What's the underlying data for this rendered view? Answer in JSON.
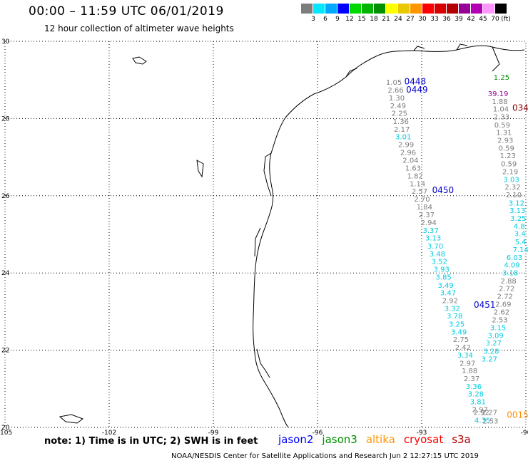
{
  "header": {
    "title": "00:00 – 11:59 UTC 06/01/2019",
    "subtitle": "12 hour collection of altimeter wave heights"
  },
  "colorbar": {
    "colors": [
      "#7d7d7d",
      "#00e8ff",
      "#00a8ff",
      "#0000ff",
      "#00d800",
      "#00b400",
      "#009000",
      "#ffff00",
      "#e8c800",
      "#ff9600",
      "#ff0000",
      "#d60000",
      "#b40000",
      "#960096",
      "#b400b4",
      "#ff96ff",
      "#000000"
    ],
    "labels": [
      "3",
      "6",
      "9",
      "12",
      "15",
      "18",
      "21",
      "24",
      "27",
      "30",
      "33",
      "36",
      "39",
      "42",
      "45",
      "70",
      "(ft)"
    ]
  },
  "map": {
    "lon_ticks": [
      "-105",
      "-102",
      "-99",
      "-96",
      "-93",
      "-90"
    ],
    "lat_ticks": [
      "30",
      "28",
      "26",
      "24",
      "22",
      "20"
    ],
    "lon_range": [
      -105,
      -90
    ],
    "lat_range": [
      20,
      30
    ],
    "grid": "dotted"
  },
  "passes": [
    {
      "label": "0448",
      "lon": -93.5,
      "lat": 28.88,
      "color": "#0000cc"
    },
    {
      "label": "0449",
      "lon": -93.45,
      "lat": 28.67,
      "color": "#0000cc"
    },
    {
      "label": "0450",
      "lon": -92.7,
      "lat": 26.07,
      "color": "#0000cc"
    },
    {
      "label": "0451",
      "lon": -91.5,
      "lat": 23.1,
      "color": "#0000cc"
    },
    {
      "label": "034",
      "lon": -90.35,
      "lat": 28.2,
      "color": "#8b0000"
    },
    {
      "label": "0015",
      "lon": -90.55,
      "lat": 20.25,
      "color": "#ff8c00"
    }
  ],
  "tracks": [
    {
      "satellite": "jason2",
      "points": [
        {
          "v": "1.05",
          "lon": -93.8,
          "lat": 28.87,
          "c": "#7d7d7d"
        },
        {
          "v": "2.66",
          "lon": -93.75,
          "lat": 28.67,
          "c": "#7d7d7d"
        },
        {
          "v": "1.30",
          "lon": -93.72,
          "lat": 28.47,
          "c": "#7d7d7d"
        },
        {
          "v": "2.49",
          "lon": -93.68,
          "lat": 28.27,
          "c": "#7d7d7d"
        },
        {
          "v": "2.25",
          "lon": -93.64,
          "lat": 28.07,
          "c": "#7d7d7d"
        },
        {
          "v": "1.36",
          "lon": -93.6,
          "lat": 27.86,
          "c": "#7d7d7d"
        },
        {
          "v": "2.17",
          "lon": -93.57,
          "lat": 27.66,
          "c": "#7d7d7d"
        },
        {
          "v": "3.01",
          "lon": -93.53,
          "lat": 27.46,
          "c": "#00cbe0"
        },
        {
          "v": "2.99",
          "lon": -93.45,
          "lat": 27.26,
          "c": "#7d7d7d"
        },
        {
          "v": "2.96",
          "lon": -93.39,
          "lat": 27.06,
          "c": "#7d7d7d"
        },
        {
          "v": "2.04",
          "lon": -93.32,
          "lat": 26.85,
          "c": "#7d7d7d"
        },
        {
          "v": "1.63",
          "lon": -93.25,
          "lat": 26.65,
          "c": "#7d7d7d"
        },
        {
          "v": "1.82",
          "lon": -93.19,
          "lat": 26.45,
          "c": "#7d7d7d"
        },
        {
          "v": "1.14",
          "lon": -93.12,
          "lat": 26.25,
          "c": "#7d7d7d"
        },
        {
          "v": "2.57",
          "lon": -93.06,
          "lat": 26.05,
          "c": "#7d7d7d"
        },
        {
          "v": "2.70",
          "lon": -92.99,
          "lat": 25.85,
          "c": "#7d7d7d"
        },
        {
          "v": "1.84",
          "lon": -92.92,
          "lat": 25.65,
          "c": "#7d7d7d"
        },
        {
          "v": "2.37",
          "lon": -92.86,
          "lat": 25.44,
          "c": "#7d7d7d"
        },
        {
          "v": "2.94",
          "lon": -92.8,
          "lat": 25.24,
          "c": "#7d7d7d"
        },
        {
          "v": "3.37",
          "lon": -92.74,
          "lat": 25.04,
          "c": "#00cbe0"
        },
        {
          "v": "3.13",
          "lon": -92.67,
          "lat": 24.84,
          "c": "#00cbe0"
        },
        {
          "v": "3.70",
          "lon": -92.61,
          "lat": 24.63,
          "c": "#00cbe0"
        },
        {
          "v": "3.48",
          "lon": -92.55,
          "lat": 24.43,
          "c": "#00cbe0"
        },
        {
          "v": "3.52",
          "lon": -92.49,
          "lat": 24.23,
          "c": "#00cbe0"
        },
        {
          "v": "3.93",
          "lon": -92.43,
          "lat": 24.03,
          "c": "#00cbe0"
        },
        {
          "v": "3.85",
          "lon": -92.37,
          "lat": 23.83,
          "c": "#00cbe0"
        },
        {
          "v": "3.49",
          "lon": -92.31,
          "lat": 23.62,
          "c": "#00cbe0"
        },
        {
          "v": "3.47",
          "lon": -92.24,
          "lat": 23.42,
          "c": "#00cbe0"
        },
        {
          "v": "2.92",
          "lon": -92.18,
          "lat": 23.22,
          "c": "#7d7d7d"
        },
        {
          "v": "3.32",
          "lon": -92.12,
          "lat": 23.02,
          "c": "#00cbe0"
        },
        {
          "v": "3.78",
          "lon": -92.05,
          "lat": 22.82,
          "c": "#00cbe0"
        },
        {
          "v": "3.25",
          "lon": -91.99,
          "lat": 22.61,
          "c": "#00cbe0"
        },
        {
          "v": "3.49",
          "lon": -91.93,
          "lat": 22.41,
          "c": "#00cbe0"
        },
        {
          "v": "2.75",
          "lon": -91.87,
          "lat": 22.21,
          "c": "#7d7d7d"
        },
        {
          "v": "2.42",
          "lon": -91.81,
          "lat": 22.01,
          "c": "#7d7d7d"
        },
        {
          "v": "3.34",
          "lon": -91.75,
          "lat": 21.81,
          "c": "#00cbe0"
        },
        {
          "v": "2.97",
          "lon": -91.68,
          "lat": 21.6,
          "c": "#7d7d7d"
        },
        {
          "v": "1.88",
          "lon": -91.62,
          "lat": 21.4,
          "c": "#7d7d7d"
        },
        {
          "v": "2.37",
          "lon": -91.56,
          "lat": 21.2,
          "c": "#7d7d7d"
        },
        {
          "v": "3.36",
          "lon": -91.5,
          "lat": 21.0,
          "c": "#00cbe0"
        },
        {
          "v": "3.28",
          "lon": -91.44,
          "lat": 20.8,
          "c": "#00cbe0"
        },
        {
          "v": "3.81",
          "lon": -91.38,
          "lat": 20.6,
          "c": "#00cbe0"
        },
        {
          "v": "2.97",
          "lon": -91.32,
          "lat": 20.4,
          "c": "#7d7d7d"
        },
        {
          "v": "2.92",
          "lon": -91.28,
          "lat": 20.32,
          "c": "#7d7d7d"
        },
        {
          "v": "4.35",
          "lon": -91.25,
          "lat": 20.12,
          "c": "#00cbe0"
        }
      ]
    },
    {
      "satellite": "jason3",
      "points": [
        {
          "v": "1.25",
          "lon": -90.7,
          "lat": 29.0,
          "c": "#009000"
        },
        {
          "v": "39.19",
          "lon": -90.8,
          "lat": 28.58,
          "c": "#960096"
        },
        {
          "v": "1.88",
          "lon": -90.75,
          "lat": 28.38,
          "c": "#7d7d7d"
        },
        {
          "v": "1.04",
          "lon": -90.72,
          "lat": 28.18,
          "c": "#7d7d7d"
        },
        {
          "v": "2.33",
          "lon": -90.7,
          "lat": 27.98,
          "c": "#7d7d7d"
        },
        {
          "v": "0.59",
          "lon": -90.68,
          "lat": 27.77,
          "c": "#7d7d7d"
        },
        {
          "v": "1.31",
          "lon": -90.63,
          "lat": 27.57,
          "c": "#7d7d7d"
        },
        {
          "v": "2.93",
          "lon": -90.59,
          "lat": 27.37,
          "c": "#7d7d7d"
        },
        {
          "v": "0.59",
          "lon": -90.56,
          "lat": 27.17,
          "c": "#7d7d7d"
        },
        {
          "v": "1.23",
          "lon": -90.52,
          "lat": 26.97,
          "c": "#7d7d7d"
        },
        {
          "v": "0.59",
          "lon": -90.49,
          "lat": 26.76,
          "c": "#7d7d7d"
        },
        {
          "v": "2.19",
          "lon": -90.45,
          "lat": 26.56,
          "c": "#7d7d7d"
        },
        {
          "v": "3.03",
          "lon": -90.42,
          "lat": 26.36,
          "c": "#00cbe0"
        },
        {
          "v": "2.32",
          "lon": -90.38,
          "lat": 26.16,
          "c": "#7d7d7d"
        },
        {
          "v": "2.10",
          "lon": -90.35,
          "lat": 25.96,
          "c": "#7d7d7d"
        },
        {
          "v": "3.12",
          "lon": -90.27,
          "lat": 25.75,
          "c": "#00cbe0"
        },
        {
          "v": "3.13",
          "lon": -90.24,
          "lat": 25.55,
          "c": "#00cbe0"
        },
        {
          "v": "3.25",
          "lon": -90.22,
          "lat": 25.35,
          "c": "#00cbe0"
        },
        {
          "v": "4.8",
          "lon": -90.19,
          "lat": 25.15,
          "c": "#00cbe0"
        },
        {
          "v": "3.4",
          "lon": -90.17,
          "lat": 24.95,
          "c": "#00cbe0"
        },
        {
          "v": "5.4",
          "lon": -90.15,
          "lat": 24.74,
          "c": "#00cbe0"
        },
        {
          "v": "7.14",
          "lon": -90.15,
          "lat": 24.54,
          "c": "#00cbe0"
        },
        {
          "v": "6.03",
          "lon": -90.33,
          "lat": 24.34,
          "c": "#00cbe0"
        },
        {
          "v": "4.09",
          "lon": -90.4,
          "lat": 24.14,
          "c": "#00cbe0"
        },
        {
          "v": "3.18",
          "lon": -90.45,
          "lat": 23.94,
          "c": "#00cbe0"
        },
        {
          "v": "2.88",
          "lon": -90.5,
          "lat": 23.73,
          "c": "#7d7d7d"
        },
        {
          "v": "2.72",
          "lon": -90.55,
          "lat": 23.53,
          "c": "#7d7d7d"
        },
        {
          "v": "2.72",
          "lon": -90.6,
          "lat": 23.33,
          "c": "#7d7d7d"
        },
        {
          "v": "2.69",
          "lon": -90.65,
          "lat": 23.13,
          "c": "#7d7d7d"
        },
        {
          "v": "2.62",
          "lon": -90.7,
          "lat": 22.92,
          "c": "#7d7d7d"
        },
        {
          "v": "2.53",
          "lon": -90.75,
          "lat": 22.72,
          "c": "#7d7d7d"
        },
        {
          "v": "3.15",
          "lon": -90.8,
          "lat": 22.52,
          "c": "#00cbe0"
        },
        {
          "v": "3.09",
          "lon": -90.87,
          "lat": 22.32,
          "c": "#00cbe0"
        },
        {
          "v": "3.27",
          "lon": -90.93,
          "lat": 22.12,
          "c": "#00cbe0"
        },
        {
          "v": "3.28",
          "lon": -91.0,
          "lat": 21.91,
          "c": "#00cbe0"
        },
        {
          "v": "3.27",
          "lon": -91.05,
          "lat": 21.71,
          "c": "#00cbe0"
        },
        {
          "v": "2.27",
          "lon": -91.05,
          "lat": 20.32,
          "c": "#7d7d7d"
        },
        {
          "v": "2.53",
          "lon": -91.02,
          "lat": 20.1,
          "c": "#7d7d7d"
        }
      ]
    }
  ],
  "note": "note: 1) Time is in UTC; 2) SWH is in feet",
  "legend": [
    {
      "name": "jason2",
      "color": "#0000ff"
    },
    {
      "name": "jason3",
      "color": "#009000"
    },
    {
      "name": "altika",
      "color": "#ff9600"
    },
    {
      "name": "cryosat",
      "color": "#ff0000"
    },
    {
      "name": "s3a",
      "color": "#b40000"
    }
  ],
  "footer": "NOAA/NESDIS Center for Satellite Applications and Research    Jun  2 12:27:15 UTC 2019"
}
